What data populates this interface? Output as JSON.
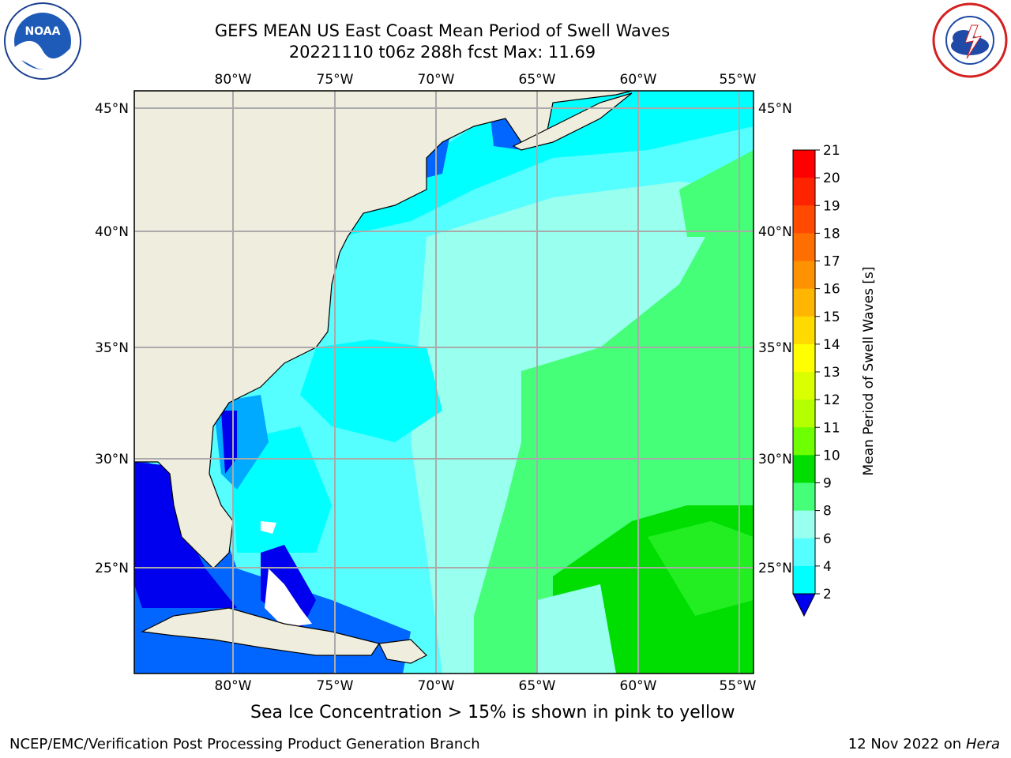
{
  "header": {
    "title_line1": "GEFS MEAN US East Coast Mean Period of Swell Waves",
    "title_line2": "20221110 t06z 288h fcst   Max: 11.69"
  },
  "logos": {
    "left": "noaa-logo",
    "right": "national-weather-service-logo"
  },
  "map": {
    "lon_ticks": [
      "80°W",
      "75°W",
      "70°W",
      "65°W",
      "60°W",
      "55°W"
    ],
    "lat_ticks": [
      "45°N",
      "40°N",
      "35°N",
      "30°N",
      "25°N"
    ],
    "land_color": "#efedde",
    "gridline_color": "#aaaaaa"
  },
  "colorbar": {
    "label": "Mean Period of Swell Waves [s]",
    "ticks": [
      "21",
      "20",
      "19",
      "18",
      "17",
      "16",
      "15",
      "14",
      "13",
      "12",
      "11",
      "10",
      "9",
      "8",
      "6",
      "4",
      "2"
    ],
    "colors": [
      "#ff0000",
      "#ff2400",
      "#ff4a00",
      "#ff6e00",
      "#ff9200",
      "#ffb600",
      "#ffda00",
      "#ffff00",
      "#d9ff00",
      "#b5ff00",
      "#6eff00",
      "#00dd00",
      "#44ff77",
      "#99ffee",
      "#55ffff",
      "#00ffff",
      "#00aaff",
      "#0066ff",
      "#0000ee"
    ]
  },
  "footer": {
    "sea_ice_note": "Sea Ice Concentration > 15% is shown in pink to yellow",
    "credit": "NCEP/EMC/Verification Post Processing Product Generation Branch",
    "date": "12 Nov 2022 on",
    "machine": "Hera"
  }
}
